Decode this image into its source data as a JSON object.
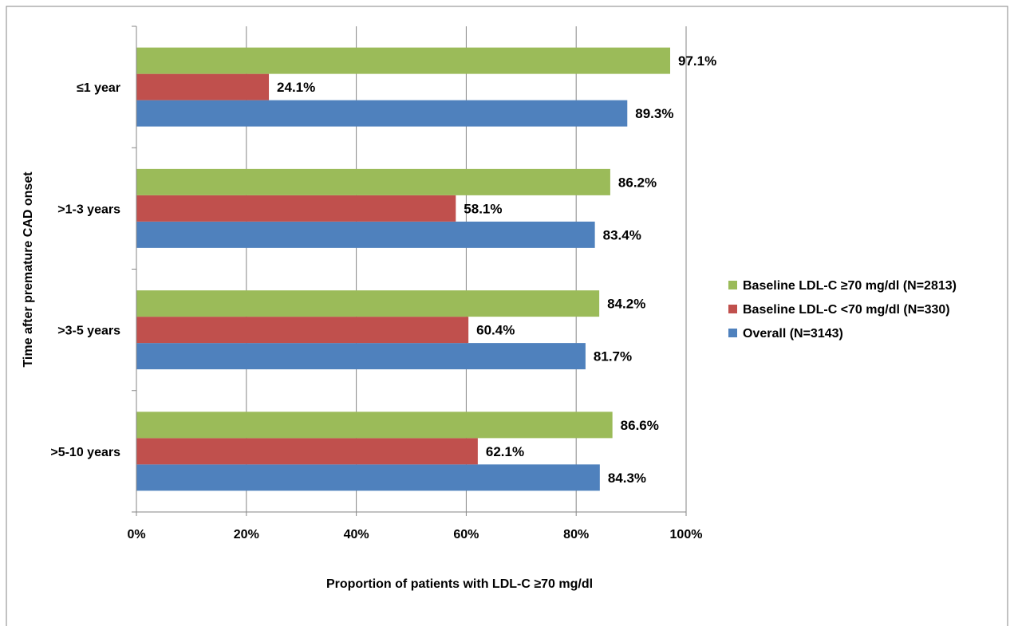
{
  "chart_data": {
    "type": "bar",
    "orientation": "horizontal",
    "categories": [
      ">5-10 years",
      ">3-5 years",
      ">1-3 years",
      "≤1 year"
    ],
    "series": [
      {
        "name": "Overall (N=3143)",
        "color": "#4F81BD",
        "values": [
          84.3,
          81.7,
          83.4,
          89.3
        ],
        "labels": [
          "84.3%",
          "81.7%",
          "83.4%",
          "89.3%"
        ]
      },
      {
        "name": "Baseline LDL-C <70 mg/dl (N=330)",
        "color": "#C0504D",
        "values": [
          62.1,
          60.4,
          58.1,
          24.1
        ],
        "labels": [
          "62.1%",
          "60.4%",
          "58.1%",
          "24.1%"
        ]
      },
      {
        "name": "Baseline LDL-C ≥70 mg/dl (N=2813)",
        "color": "#9BBB59",
        "values": [
          86.6,
          84.2,
          86.2,
          97.1
        ],
        "labels": [
          "86.6%",
          "84.2%",
          "86.2%",
          "97.1%"
        ]
      }
    ],
    "xlabel": "Proportion of patients with  LDL-C ≥70 mg/dl",
    "ylabel": "Time after premature CAD onset",
    "xlim": [
      0,
      100
    ],
    "xticks": [
      0,
      20,
      40,
      60,
      80,
      100
    ],
    "xtick_labels": [
      "0%",
      "20%",
      "40%",
      "60%",
      "80%",
      "100%"
    ],
    "grid": "vertical",
    "legend": {
      "placement": "right",
      "order": [
        "Baseline LDL-C ≥70 mg/dl (N=2813)",
        "Baseline LDL-C <70 mg/dl (N=330)",
        "Overall (N=3143)"
      ]
    },
    "colors": {
      "grid": "#868686",
      "axis": "#868686",
      "frame": "#868686"
    }
  }
}
